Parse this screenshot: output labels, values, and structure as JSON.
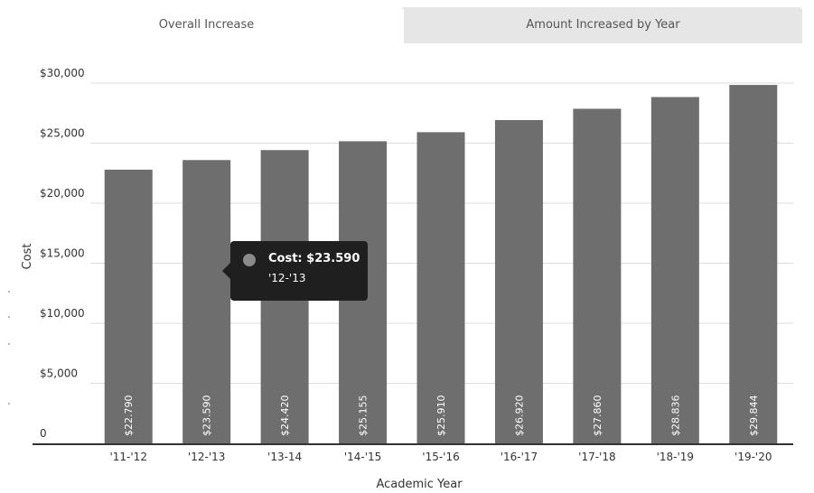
{
  "tabs": [
    {
      "label": "Overall Increase",
      "active": true
    },
    {
      "label": "Amount Increased by Year",
      "active": false
    }
  ],
  "tooltip": {
    "cost_line": "Cost: $23.590",
    "year_line": "'12-'13"
  },
  "colors": {
    "bar": "#6e6e6e",
    "tooltip_bg": "#1f1f1f",
    "tab_inactive": "#e6e6e6",
    "grid": "#dddddd",
    "axis": "#333333"
  },
  "chart_data": {
    "type": "bar",
    "categories": [
      "'11-'12",
      "'12-'13",
      "'13-14",
      "'14-'15",
      "'15-'16",
      "'16-'17",
      "'17-'18",
      "'18-'19",
      "'19-'20"
    ],
    "values": [
      22790,
      23590,
      24420,
      25155,
      25910,
      26920,
      27860,
      28836,
      29844
    ],
    "data_labels": [
      "$22.790",
      "$23.590",
      "$24.420",
      "$25.155",
      "$25.910",
      "$26.920",
      "$27.860",
      "$28.836",
      "$29.844"
    ],
    "xlabel": "Academic Year",
    "ylabel": "Cost",
    "ylim": [
      0,
      30000
    ],
    "yticks": [
      0,
      5000,
      10000,
      15000,
      20000,
      25000,
      30000
    ],
    "ytick_labels": [
      "0",
      "$5,000",
      "$10,000",
      "$15,000",
      "$20,000",
      "$25,000",
      "$30,000"
    ],
    "grid": true
  }
}
